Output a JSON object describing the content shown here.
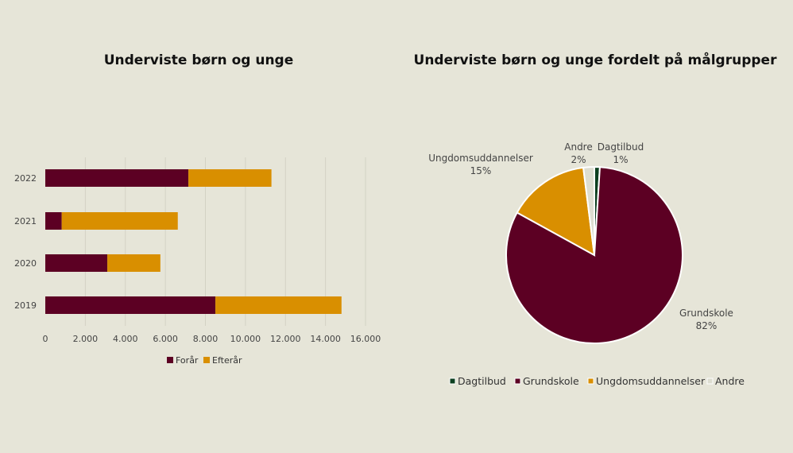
{
  "chart_data": [
    {
      "type": "bar",
      "orientation": "horizontal",
      "stacked": true,
      "title": "Underviste børn og unge",
      "categories": [
        "2022",
        "2021",
        "2020",
        "2019"
      ],
      "series": [
        {
          "name": "Forår",
          "values": [
            7150,
            820,
            3100,
            8500
          ],
          "color": "#5c0023"
        },
        {
          "name": "Efterår",
          "values": [
            4150,
            5800,
            2650,
            6300
          ],
          "color": "#d98f00"
        }
      ],
      "xticks": [
        "0",
        "2.000",
        "4.000",
        "6.000",
        "8.000",
        "10.000",
        "12.000",
        "14.000",
        "16.000"
      ],
      "xlim": [
        0,
        16000
      ],
      "grid": "vertical",
      "legend": "bottom"
    },
    {
      "type": "pie",
      "title": "Underviste børn og unge fordelt på målgrupper",
      "slices": [
        {
          "name": "Dagtilbud",
          "value": 1,
          "label": "1%",
          "color": "#0d4020"
        },
        {
          "name": "Grundskole",
          "value": 82,
          "label": "82%",
          "color": "#5c0023"
        },
        {
          "name": "Ungdomsuddannelser",
          "value": 15,
          "label": "15%",
          "color": "#d98f00"
        },
        {
          "name": "Andre",
          "value": 2,
          "label": "2%",
          "color": "#ddddd0"
        }
      ],
      "legend": "bottom"
    }
  ]
}
